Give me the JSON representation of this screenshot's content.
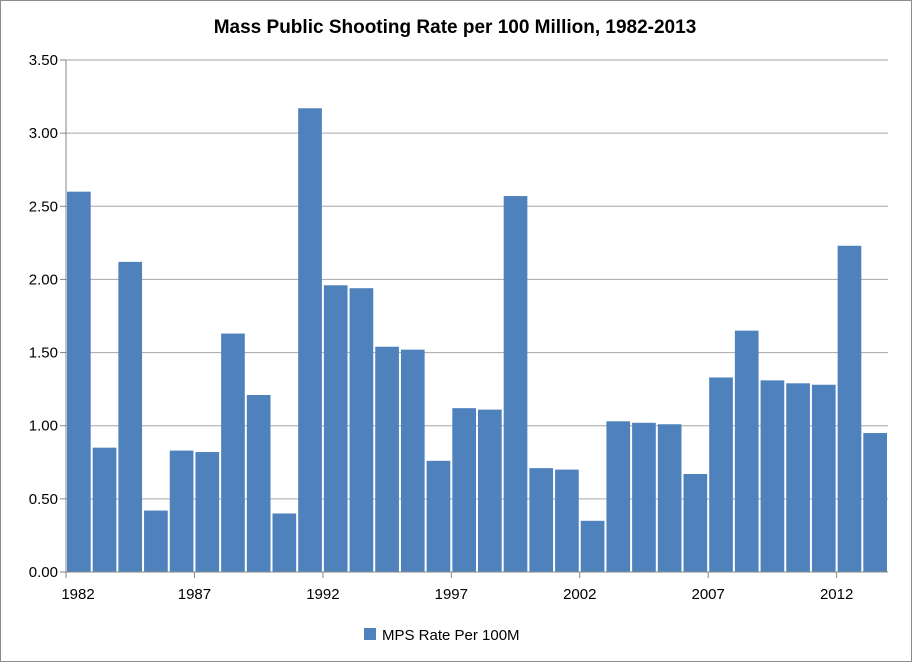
{
  "chart_data": {
    "type": "bar",
    "title": "Mass Public Shooting Rate per 100 Million, 1982-2013",
    "xlabel": "",
    "ylabel": "",
    "categories": [
      "1982",
      "1983",
      "1984",
      "1985",
      "1986",
      "1987",
      "1988",
      "1989",
      "1990",
      "1991",
      "1992",
      "1993",
      "1994",
      "1995",
      "1996",
      "1997",
      "1998",
      "1999",
      "2000",
      "2001",
      "2002",
      "2003",
      "2004",
      "2005",
      "2006",
      "2007",
      "2008",
      "2009",
      "2010",
      "2011",
      "2012",
      "2013"
    ],
    "series": [
      {
        "name": "MPS Rate Per 100M",
        "color": "#4f81bd",
        "values": [
          2.6,
          0.85,
          2.12,
          0.42,
          0.83,
          0.82,
          1.63,
          1.21,
          0.4,
          3.17,
          1.96,
          1.94,
          1.54,
          1.52,
          0.76,
          1.12,
          1.11,
          2.57,
          0.71,
          0.7,
          0.35,
          1.03,
          1.02,
          1.01,
          0.67,
          1.33,
          1.65,
          1.31,
          1.29,
          1.28,
          2.23,
          0.95
        ]
      }
    ],
    "x_tick_labels": [
      "1982",
      "1987",
      "1992",
      "1997",
      "2002",
      "2007",
      "2012"
    ],
    "x_tick_every": 5,
    "y_tick_labels": [
      "0.00",
      "0.50",
      "1.00",
      "1.50",
      "2.00",
      "2.50",
      "3.00",
      "3.50"
    ],
    "ylim": [
      0,
      3.5
    ],
    "y_step": 0.5,
    "grid": "horizontal",
    "legend_position": "bottom-center",
    "gridline_color": "#a6a6a6",
    "axis_color": "#868686"
  }
}
